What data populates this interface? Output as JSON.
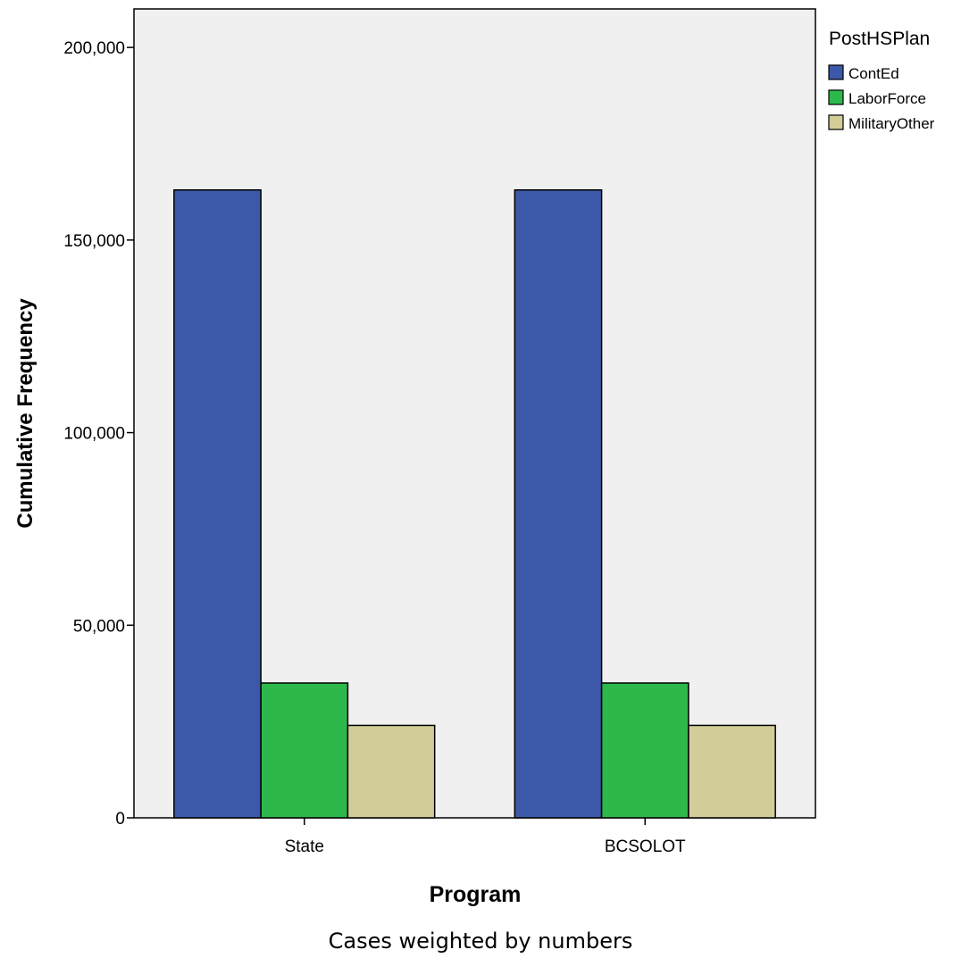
{
  "chart_data": {
    "type": "bar",
    "title": "",
    "xlabel": "Program",
    "ylabel": "Cumulative Frequency",
    "categories": [
      "State",
      "BCSOLOT"
    ],
    "series": [
      {
        "name": "ContEd",
        "color": "#3c58a8",
        "values": [
          163000,
          163000
        ]
      },
      {
        "name": "LaborForce",
        "color": "#2db84b",
        "values": [
          35000,
          35000
        ]
      },
      {
        "name": "MilitaryOther",
        "color": "#d2cc98",
        "values": [
          24000,
          24000
        ]
      }
    ],
    "ylim": [
      0,
      210000
    ],
    "yticks": [
      0,
      50000,
      100000,
      150000,
      200000
    ],
    "ytick_labels": [
      "0",
      "50,000",
      "100,000",
      "150,000",
      "200,000"
    ],
    "legend_title": "PostHSPlan",
    "legend_position": "right",
    "plot_background": "#f0f0f0",
    "grid": false
  },
  "footnote": "Cases weighted by numbers"
}
